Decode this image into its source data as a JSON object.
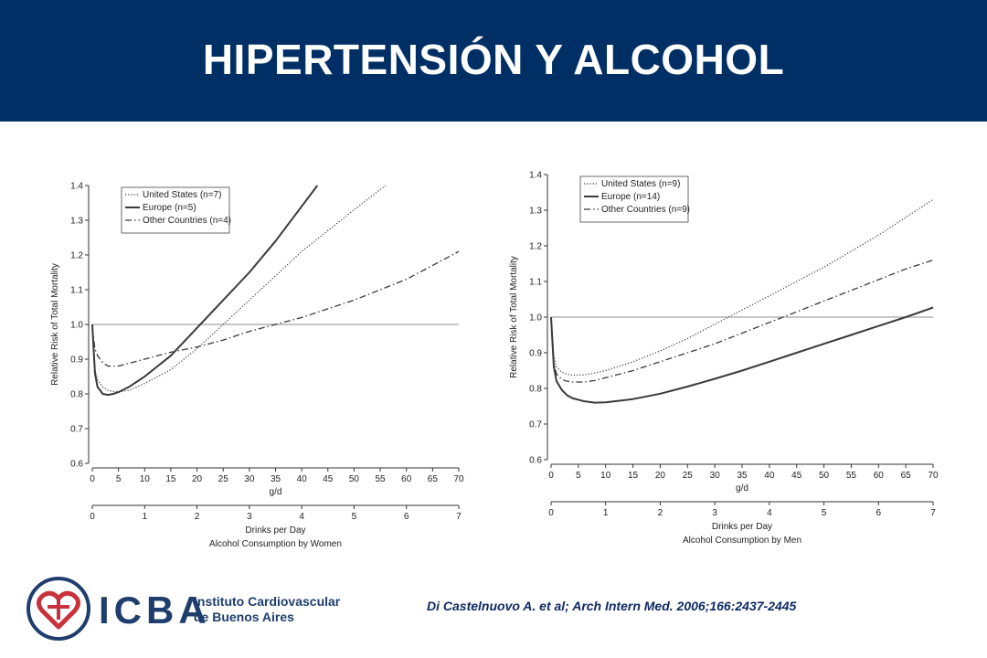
{
  "slide": {
    "title": "HIPERTENSIÓN Y ALCOHOL",
    "citation": "Di Castelnuovo A. et al; Arch Intern Med. 2006;166:2437-2445",
    "colors": {
      "header_bg": "#002f66",
      "brand": "#1f3e6d",
      "accent_red": "#c8323c"
    }
  },
  "logo": {
    "acronym": "ICBA",
    "name_line1": "Instituto Cardiovascular",
    "name_line2": "de Buenos Aires",
    "icon": "heart-emblem-icon"
  },
  "chart_data": [
    {
      "type": "line",
      "ylabel": "Relative Risk of Total Mortality",
      "xlabel": "g/d",
      "x2label": "Drinks per Day",
      "caption": "Alcohol Consumption by Women",
      "xlim": [
        0,
        70
      ],
      "ylim": [
        0.6,
        1.4
      ],
      "x_ticks": [
        "0",
        "5",
        "10",
        "15",
        "20",
        "25",
        "30",
        "35",
        "40",
        "45",
        "50",
        "55",
        "60",
        "65",
        "70"
      ],
      "x2_ticks": [
        "0",
        "1",
        "2",
        "3",
        "4",
        "5",
        "6",
        "7"
      ],
      "y_ticks": [
        "0.6",
        "0.7",
        "0.8",
        "0.9",
        "1.0",
        "1.1",
        "1.2",
        "1.3",
        "1.4"
      ],
      "reference_line": 1.0,
      "legend_position": "top-left",
      "series": [
        {
          "name": "United States (n=7)",
          "style": "dotted",
          "x": [
            0,
            0.5,
            1,
            2,
            3,
            4,
            5,
            7,
            10,
            15,
            20,
            25,
            30,
            35,
            40,
            45,
            50,
            56
          ],
          "y": [
            1.0,
            0.87,
            0.84,
            0.82,
            0.81,
            0.807,
            0.806,
            0.81,
            0.83,
            0.87,
            0.93,
            1.0,
            1.07,
            1.14,
            1.21,
            1.27,
            1.33,
            1.4
          ]
        },
        {
          "name": "Europe (n=5)",
          "style": "solid",
          "x": [
            0,
            0.5,
            1,
            2,
            3,
            4,
            5,
            7,
            10,
            15,
            20,
            25,
            30,
            35,
            40,
            43
          ],
          "y": [
            1.0,
            0.86,
            0.82,
            0.8,
            0.797,
            0.8,
            0.805,
            0.82,
            0.85,
            0.91,
            0.99,
            1.07,
            1.15,
            1.24,
            1.34,
            1.4
          ]
        },
        {
          "name": "Other Countries (n=4)",
          "style": "dashdot",
          "x": [
            0,
            0.5,
            1,
            2,
            3,
            5,
            10,
            15,
            20,
            25,
            30,
            35,
            40,
            45,
            50,
            55,
            60,
            65,
            70
          ],
          "y": [
            0.99,
            0.93,
            0.91,
            0.89,
            0.88,
            0.88,
            0.9,
            0.92,
            0.935,
            0.955,
            0.98,
            1.0,
            1.02,
            1.045,
            1.07,
            1.1,
            1.13,
            1.17,
            1.21
          ]
        }
      ]
    },
    {
      "type": "line",
      "ylabel": "Relative Risk of Total Mortality",
      "xlabel": "g/d",
      "x2label": "Drinks per Day",
      "caption": "Alcohol Consumption by Men",
      "xlim": [
        0,
        70
      ],
      "ylim": [
        0.6,
        1.4
      ],
      "x_ticks": [
        "0",
        "5",
        "10",
        "15",
        "20",
        "25",
        "30",
        "35",
        "40",
        "45",
        "50",
        "55",
        "60",
        "65",
        "70"
      ],
      "x2_ticks": [
        "0",
        "1",
        "2",
        "3",
        "4",
        "5",
        "6",
        "7"
      ],
      "y_ticks": [
        "0.6",
        "0.7",
        "0.8",
        "0.9",
        "1.0",
        "1.1",
        "1.2",
        "1.3",
        "1.4"
      ],
      "reference_line": 1.0,
      "legend_position": "top-left",
      "series": [
        {
          "name": "United States (n=9)",
          "style": "dotted",
          "x": [
            0,
            0.5,
            1,
            2,
            3,
            4,
            6,
            8,
            10,
            15,
            20,
            25,
            30,
            35,
            40,
            45,
            50,
            55,
            60,
            65,
            70
          ],
          "y": [
            1.0,
            0.89,
            0.86,
            0.845,
            0.84,
            0.837,
            0.838,
            0.843,
            0.85,
            0.875,
            0.905,
            0.94,
            0.98,
            1.02,
            1.06,
            1.1,
            1.14,
            1.185,
            1.23,
            1.28,
            1.33
          ]
        },
        {
          "name": "Europe (n=14)",
          "style": "solid",
          "x": [
            0,
            0.5,
            1,
            2,
            3,
            4,
            6,
            8,
            10,
            15,
            20,
            25,
            30,
            35,
            40,
            45,
            50,
            55,
            60,
            65,
            70
          ],
          "y": [
            1.0,
            0.86,
            0.82,
            0.795,
            0.78,
            0.772,
            0.764,
            0.76,
            0.761,
            0.77,
            0.785,
            0.805,
            0.827,
            0.85,
            0.875,
            0.9,
            0.925,
            0.95,
            0.975,
            1.0,
            1.027
          ]
        },
        {
          "name": "Other Countries (n=9)",
          "style": "dashdot",
          "x": [
            0,
            0.5,
            1,
            2,
            3,
            4,
            6,
            8,
            10,
            15,
            20,
            25,
            30,
            35,
            40,
            45,
            50,
            55,
            60,
            65,
            70
          ],
          "y": [
            1.0,
            0.87,
            0.84,
            0.825,
            0.82,
            0.818,
            0.818,
            0.822,
            0.83,
            0.85,
            0.875,
            0.9,
            0.925,
            0.955,
            0.985,
            1.015,
            1.045,
            1.075,
            1.105,
            1.135,
            1.16
          ]
        }
      ]
    }
  ]
}
